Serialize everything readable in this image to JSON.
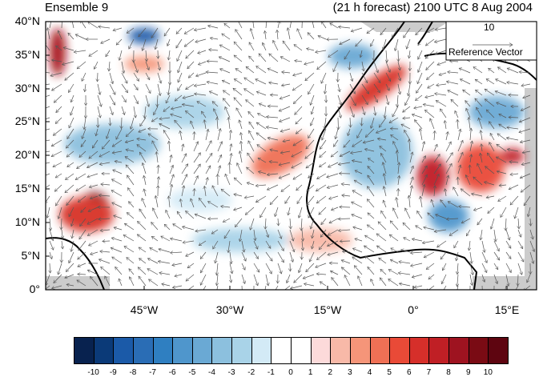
{
  "header": {
    "left_title": "Ensemble 9",
    "right_title": "(21 h forecast) 2100 UTC 8 Aug 2004"
  },
  "axes": {
    "y_ticks": [
      "40°N",
      "35°N",
      "30°N",
      "25°N",
      "20°N",
      "15°N",
      "10°N",
      "5°N",
      "0°"
    ],
    "x_ticks": [
      "45°W",
      "30°W",
      "15°W",
      "0°",
      "15°E"
    ]
  },
  "reference_vector": {
    "magnitude": "10",
    "label": "Reference Vector"
  },
  "colorbar": {
    "labels": [
      "-10",
      "-9",
      "-8",
      "-7",
      "-6",
      "-5",
      "-4",
      "-3",
      "-2",
      "-1",
      "0",
      "1",
      "2",
      "3",
      "4",
      "5",
      "6",
      "7",
      "8",
      "9",
      "10"
    ],
    "colors": [
      "#08224f",
      "#0b3a78",
      "#1b5aa8",
      "#2a6db5",
      "#2f7fc1",
      "#4f96cc",
      "#6aa9d4",
      "#8cc0de",
      "#a9d3e8",
      "#d3eaf6",
      "#ffffff",
      "#ffffff",
      "#fcdada",
      "#f8b9a8",
      "#f59579",
      "#ef7055",
      "#e94a37",
      "#d62f2a",
      "#c01f25",
      "#9e1320",
      "#7a0b14",
      "#5e0510"
    ]
  },
  "map_colors": {
    "land_gray": "#cccccc",
    "coast": "#000000",
    "arrow": "#555555"
  }
}
